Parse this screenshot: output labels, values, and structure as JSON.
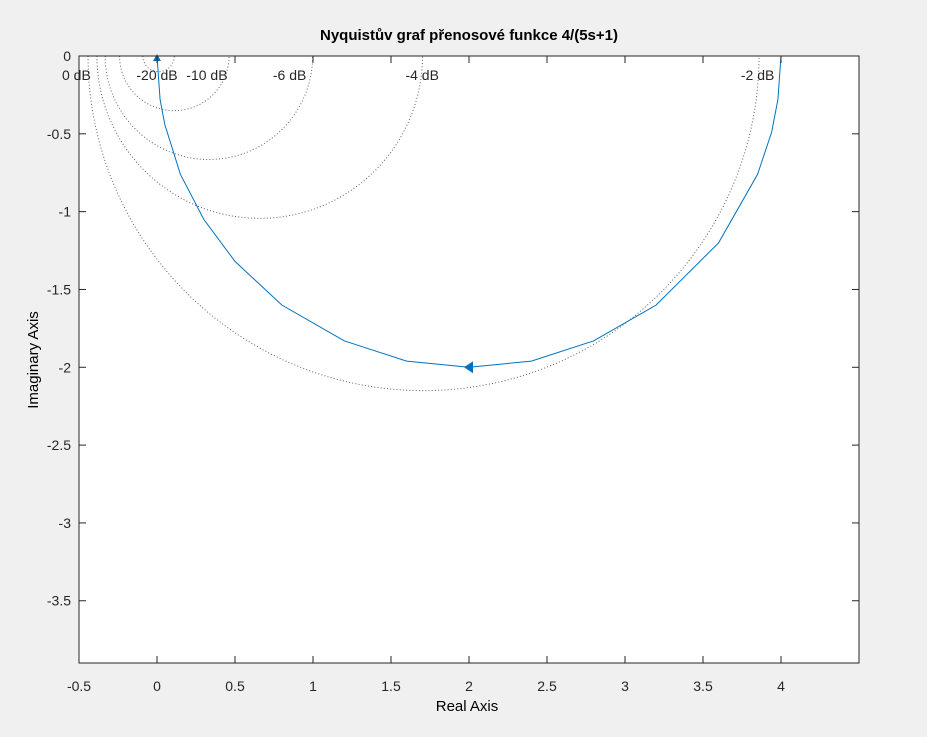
{
  "chart_data": {
    "type": "line",
    "title": "Nyquistův graf přenosové funkce 4/(5s+1)",
    "xlabel": "Real Axis",
    "ylabel": "Imaginary Axis",
    "xlim": [
      -0.5,
      4.5
    ],
    "ylim": [
      -3.9,
      0
    ],
    "xticks": [
      "-0.5",
      "0",
      "0.5",
      "1",
      "1.5",
      "2",
      "2.5",
      "3",
      "3.5",
      "4"
    ],
    "xtick_values": [
      -0.5,
      0,
      0.5,
      1,
      1.5,
      2,
      2.5,
      3,
      3.5,
      4
    ],
    "yticks": [
      "0",
      "-0.5",
      "-1",
      "-1.5",
      "-2",
      "-2.5",
      "-3",
      "-3.5"
    ],
    "ytick_values": [
      0,
      -0.5,
      -1,
      -1.5,
      -2,
      -2.5,
      -3,
      -3.5
    ],
    "grid": "db-circles",
    "series": [
      {
        "color": "#0072bd",
        "x": [
          4.0,
          3.98,
          3.94,
          3.85,
          3.6,
          3.2,
          2.8,
          2.4,
          2.0,
          1.6,
          1.2,
          0.8,
          0.5,
          0.3,
          0.15,
          0.05,
          0.02,
          0.0
        ],
        "y": [
          0.0,
          -0.28,
          -0.49,
          -0.76,
          -1.2,
          -1.6,
          -1.83,
          -1.96,
          -2.0,
          -1.96,
          -1.83,
          -1.6,
          -1.32,
          -1.05,
          -0.76,
          -0.44,
          -0.28,
          0.0
        ],
        "arrows": [
          {
            "x": 2.0,
            "y": -2.0,
            "direction": "left"
          },
          {
            "x": 0.0,
            "y": 0.0,
            "direction": "up"
          }
        ]
      }
    ],
    "db_circles": [
      {
        "label": "0 dB",
        "label_x": -0.5,
        "center": -0.5,
        "radius": 0.0
      },
      {
        "label": "-20 dB",
        "label_x": 0.0,
        "center": 0.0101,
        "radius": 0.101
      },
      {
        "label": "-10 dB",
        "label_x": 0.32,
        "center": 0.111,
        "radius": 0.351
      },
      {
        "label": "-6 dB",
        "label_x": 0.85,
        "center": 0.3325,
        "radius": 0.6651
      },
      {
        "label": "-4 dB",
        "label_x": 1.7,
        "center": 0.6585,
        "radius": 1.0436
      },
      {
        "label": "-2 dB",
        "label_x": 3.85,
        "center": 1.7085,
        "radius": 2.1506
      }
    ]
  }
}
